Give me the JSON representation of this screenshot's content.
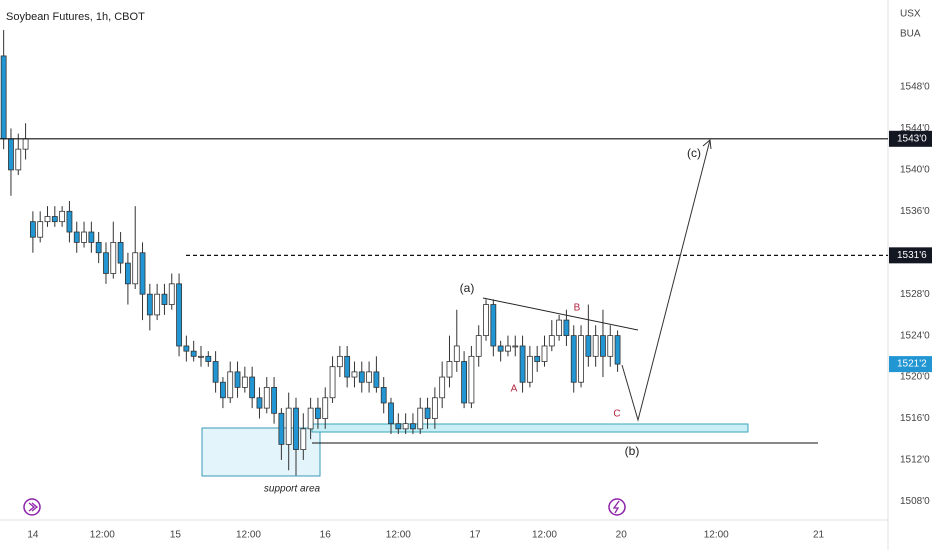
{
  "chart_data": {
    "type": "candlestick",
    "title": "Soybean Futures, 1h, CBOT",
    "currency": "USX",
    "unit_label": "BUA",
    "up_color": "#ffffff",
    "down_color": "#2196d3",
    "ylim": [
      1506.2,
      1556.4
    ],
    "xlim": [
      -0.5,
      121
    ],
    "yticks": [
      {
        "value": 1508,
        "label": "1508'0"
      },
      {
        "value": 1512,
        "label": "1512'0"
      },
      {
        "value": 1516,
        "label": "1516'0"
      },
      {
        "value": 1520,
        "label": "1520'0"
      },
      {
        "value": 1524,
        "label": "1524'0"
      },
      {
        "value": 1528,
        "label": "1528'0"
      },
      {
        "value": 1536,
        "label": "1536'0"
      },
      {
        "value": 1540,
        "label": "1540'0"
      },
      {
        "value": 1544,
        "label": "1544'0"
      },
      {
        "value": 1548,
        "label": "1548'0"
      }
    ],
    "xticks": [
      {
        "value": 4,
        "label": "14"
      },
      {
        "value": 13.5,
        "label": "12:00"
      },
      {
        "value": 23.5,
        "label": "15"
      },
      {
        "value": 33.5,
        "label": "12:00"
      },
      {
        "value": 44,
        "label": "16"
      },
      {
        "value": 54,
        "label": "12:00"
      },
      {
        "value": 64.5,
        "label": "17"
      },
      {
        "value": 74,
        "label": "12:00"
      },
      {
        "value": 84.5,
        "label": "20"
      },
      {
        "value": 97.5,
        "label": "12:00"
      },
      {
        "value": 111.5,
        "label": "21"
      }
    ],
    "open": [
      1551,
      1543,
      1540,
      1542,
      1535,
      1533.5,
      1535,
      1535.5,
      1535,
      1536,
      1534,
      1533,
      1534,
      1533,
      1532,
      1530,
      1533,
      1531,
      1529,
      1532,
      1528,
      1526,
      1528,
      1527,
      1529,
      1523,
      1522.5,
      1522,
      1522,
      1521.5,
      1519.5,
      1518,
      1520.5,
      1519,
      1520,
      1518,
      1517,
      1519,
      1516.5,
      1513.5,
      1517,
      1513,
      1515,
      1517,
      1516,
      1518,
      1521,
      1522,
      1520,
      1520.5,
      1519.5,
      1520.5,
      1519,
      1517.5,
      1515.5,
      1515,
      1515.5,
      1515,
      1517,
      1516,
      1518,
      1520,
      1521.5,
      1521.5,
      1517.5,
      1522,
      1524,
      1527,
      1523,
      1522.5,
      1523,
      1523,
      1519.5,
      1522,
      1521.5,
      1523,
      1524,
      1525.5,
      1524,
      1519.5,
      1524,
      1522,
      1524,
      1522,
      1524
    ],
    "high": [
      1553.5,
      1544,
      1543.5,
      1544.5,
      1536,
      1536,
      1536.5,
      1536.5,
      1536.5,
      1537,
      1535,
      1535,
      1535,
      1534,
      1533,
      1535,
      1534,
      1532,
      1536.5,
      1533,
      1529,
      1529,
      1529,
      1530,
      1530,
      1524,
      1523.5,
      1523,
      1522.5,
      1522.5,
      1520,
      1521.5,
      1521.5,
      1521,
      1521,
      1519,
      1520,
      1520,
      1517,
      1518.5,
      1518,
      1516.5,
      1518,
      1518,
      1519,
      1522,
      1523,
      1523,
      1521.5,
      1521.5,
      1521.5,
      1522,
      1520,
      1518,
      1516.5,
      1516.5,
      1516.5,
      1518,
      1518,
      1519,
      1521.5,
      1524,
      1526.5,
      1522.5,
      1523,
      1525,
      1527.5,
      1527.5,
      1523.5,
      1524,
      1524,
      1524,
      1523,
      1523,
      1524,
      1525.5,
      1526,
      1526.5,
      1525,
      1525,
      1527,
      1525,
      1526.5,
      1525,
      1524.5
    ],
    "low": [
      1542,
      1537.5,
      1539.5,
      1541,
      1532,
      1533,
      1534.5,
      1534.5,
      1534.5,
      1533,
      1532,
      1532.5,
      1532,
      1531,
      1529,
      1529.5,
      1530,
      1527,
      1528.5,
      1525.5,
      1524.5,
      1525.5,
      1526,
      1526.5,
      1522,
      1521.5,
      1521.5,
      1521,
      1521,
      1518.5,
      1517,
      1517.5,
      1518,
      1518.5,
      1517,
      1516,
      1516.5,
      1515.5,
      1512,
      1511,
      1510.5,
      1512,
      1514,
      1515,
      1515,
      1517.5,
      1520,
      1519,
      1519,
      1518.5,
      1518.5,
      1518.5,
      1516.5,
      1514.5,
      1514.5,
      1514.5,
      1514.5,
      1514.5,
      1515,
      1515,
      1517,
      1519,
      1520.5,
      1517,
      1517,
      1521,
      1523.5,
      1522,
      1521.5,
      1522,
      1522,
      1518.5,
      1519,
      1520.5,
      1521,
      1522.5,
      1523.5,
      1523,
      1518.5,
      1519,
      1521,
      1521,
      1520,
      1521,
      1520.5
    ],
    "close": [
      1543,
      1540,
      1542,
      1543,
      1533.5,
      1535,
      1535.5,
      1535,
      1536,
      1534,
      1533,
      1534,
      1533,
      1532,
      1530,
      1533,
      1531,
      1529,
      1532,
      1528,
      1526,
      1528,
      1527,
      1529,
      1523,
      1522.5,
      1522,
      1522,
      1521.5,
      1519.5,
      1518,
      1520.5,
      1519,
      1520,
      1518,
      1517,
      1519,
      1516.5,
      1513.5,
      1517,
      1513,
      1515,
      1517,
      1516,
      1518,
      1521,
      1522,
      1520,
      1520.5,
      1519.5,
      1520.5,
      1519,
      1517.5,
      1515.5,
      1515,
      1515.5,
      1515,
      1517,
      1516,
      1518,
      1520,
      1521.5,
      1523,
      1517.5,
      1522,
      1524,
      1527,
      1523,
      1522.5,
      1523,
      1523,
      1519.5,
      1522,
      1521.5,
      1523,
      1524,
      1525.5,
      1524,
      1519.5,
      1524,
      1522,
      1524,
      1522,
      1524,
      1521.25
    ],
    "levels": [
      {
        "value": 1543,
        "label": "1543'0",
        "style": "solid"
      },
      {
        "value": 1531.75,
        "label": "1531'6",
        "style": "dashed"
      }
    ],
    "last_price": {
      "value": 1521.25,
      "label": "1521'2"
    },
    "annotations": [
      {
        "text": "(a)",
        "color": "#222222"
      },
      {
        "text": "B",
        "color": "#b2253f"
      },
      {
        "text": "A",
        "color": "#b2253f"
      },
      {
        "text": "C",
        "color": "#b2253f"
      },
      {
        "text": "(b)",
        "color": "#222222"
      },
      {
        "text": "(c)",
        "color": "#222222"
      },
      {
        "text": "support area",
        "color": "#222222"
      }
    ]
  }
}
